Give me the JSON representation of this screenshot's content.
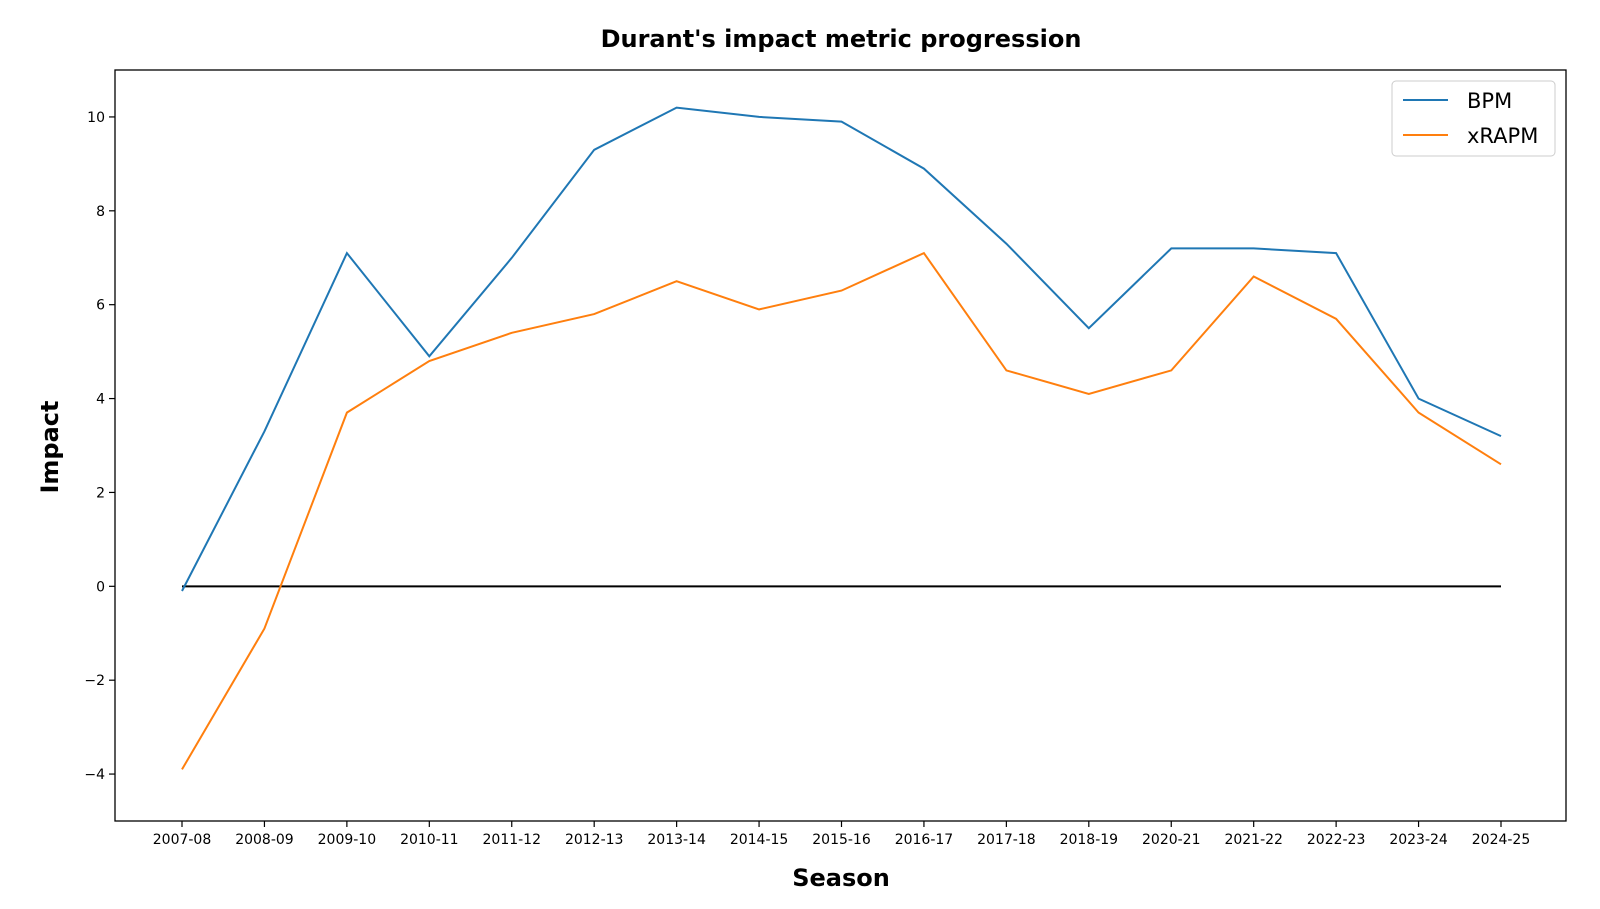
{
  "chart_data": {
    "type": "line",
    "title": "Durant's impact metric progression",
    "xlabel": "Season",
    "ylabel": "Impact",
    "categories": [
      "2007-08",
      "2008-09",
      "2009-10",
      "2010-11",
      "2011-12",
      "2012-13",
      "2013-14",
      "2014-15",
      "2015-16",
      "2016-17",
      "2017-18",
      "2018-19",
      "2020-21",
      "2021-22",
      "2022-23",
      "2023-24",
      "2024-25"
    ],
    "series": [
      {
        "name": "BPM",
        "color": "#1f77b4",
        "values": [
          -0.1,
          3.3,
          7.1,
          4.9,
          7.0,
          9.3,
          10.2,
          10.0,
          9.9,
          8.9,
          7.3,
          5.5,
          7.2,
          7.2,
          7.1,
          4.0,
          3.2
        ]
      },
      {
        "name": "xRAPM",
        "color": "#ff7f0e",
        "values": [
          -3.9,
          -0.9,
          3.7,
          4.8,
          5.4,
          5.8,
          6.5,
          5.9,
          6.3,
          7.1,
          4.6,
          4.1,
          4.6,
          6.6,
          5.7,
          3.7,
          2.6
        ]
      }
    ],
    "ylim": [
      -5,
      11
    ],
    "yticks": [
      -4,
      -2,
      0,
      2,
      4,
      6,
      8,
      10
    ],
    "ytick_labels": [
      "−4",
      "−2",
      "0",
      "2",
      "4",
      "6",
      "8",
      "10"
    ],
    "reference_line": {
      "y": 0,
      "color": "#000000"
    },
    "grid": false,
    "legend": "top-right"
  }
}
